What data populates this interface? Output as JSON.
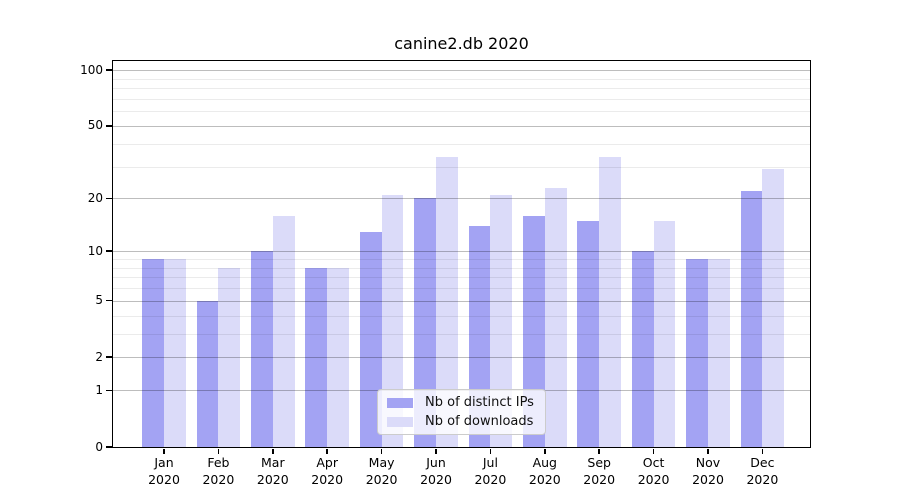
{
  "title": "canine2.db 2020",
  "colors": {
    "distinct_ips_bar": "#a3a3f3",
    "downloads_bar": "#dbdbf9",
    "major_gridline": "#bdbdbd",
    "minor_gridline": "#ebebeb",
    "axis_frame": "#000000"
  },
  "chart_data": {
    "type": "bar",
    "title": "canine2.db 2020",
    "categories": [
      "Jan",
      "Feb",
      "Mar",
      "Apr",
      "May",
      "Jun",
      "Jul",
      "Aug",
      "Sep",
      "Oct",
      "Nov",
      "Dec"
    ],
    "year_label": "2020",
    "series": [
      {
        "name": "Nb of distinct IPs",
        "color": "#a3a3f3",
        "values": [
          9,
          5,
          10,
          8,
          13,
          20,
          14,
          16,
          15,
          10,
          9,
          22
        ]
      },
      {
        "name": "Nb of downloads",
        "color": "#dbdbf9",
        "values": [
          9,
          8,
          16,
          8,
          21,
          34,
          21,
          23,
          34,
          15,
          9,
          29
        ]
      }
    ],
    "xlabel": "",
    "ylabel": "",
    "yscale": "symlog",
    "ylim": [
      0,
      112
    ],
    "yticks": [
      0,
      1,
      2,
      5,
      10,
      20,
      50,
      100
    ],
    "minor_yticks": [
      3,
      4,
      6,
      7,
      8,
      9,
      30,
      40,
      60,
      70,
      80,
      90
    ],
    "grid": true,
    "legend_position": "lower center"
  }
}
